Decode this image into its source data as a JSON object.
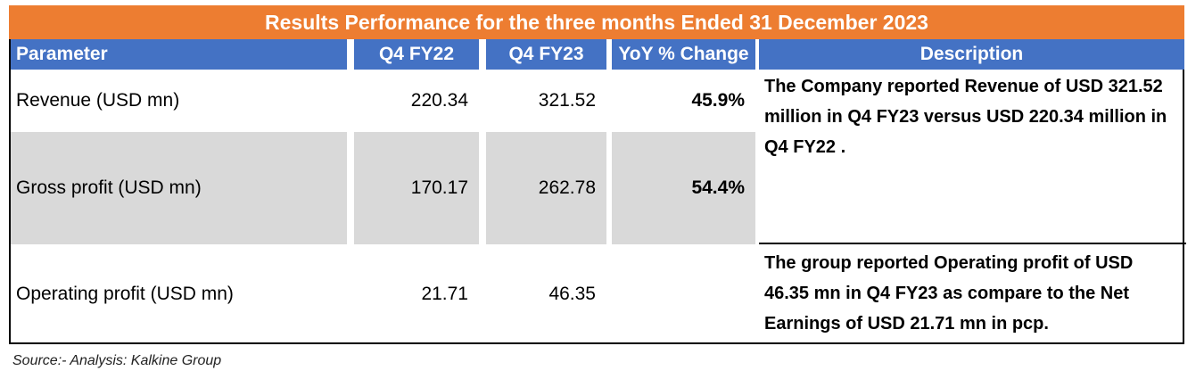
{
  "title": "Results Performance for the three months Ended 31 December 2023",
  "headers": {
    "parameter": "Parameter",
    "q4fy22": "Q4 FY22",
    "q4fy23": "Q4 FY23",
    "yoy": "YoY % Change",
    "description": "Description"
  },
  "rows": [
    {
      "parameter": "Revenue  (USD mn)",
      "q4fy22": "220.34",
      "q4fy23": "321.52",
      "yoy": "45.9%"
    },
    {
      "parameter": "Gross profit (USD mn)",
      "q4fy22": "170.17",
      "q4fy23": "262.78",
      "yoy": "54.4%"
    },
    {
      "parameter": "Operating profit (USD mn)",
      "q4fy22": "21.71",
      "q4fy23": "46.35",
      "yoy": ""
    }
  ],
  "descriptions": [
    "The Company reported Revenue of USD 321.52 million in Q4 FY23 versus  USD 220.34 million in Q4 FY22 .",
    "The group reported  Operating profit of USD 46.35 mn in Q4 FY23 as compare to the Net Earnings of USD 21.71  mn in pcp."
  ],
  "source": "Source:- Analysis: Kalkine Group"
}
